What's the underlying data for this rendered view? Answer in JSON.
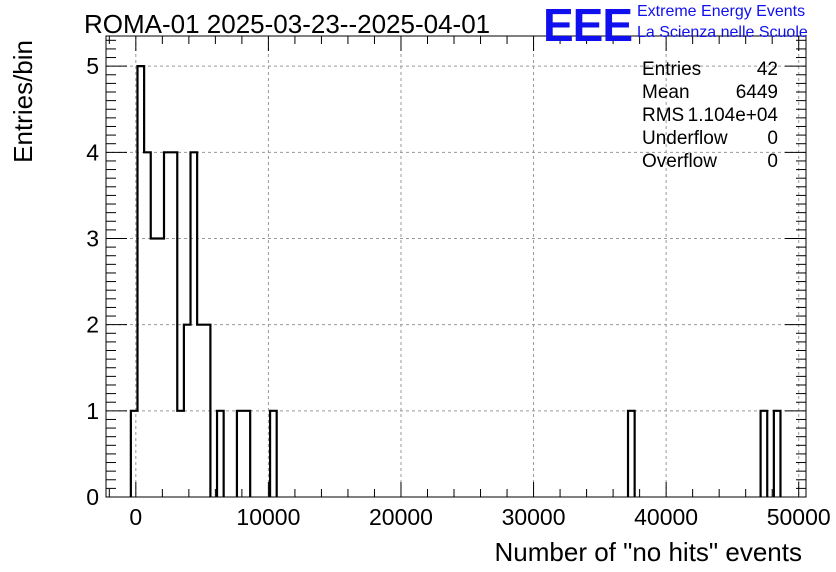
{
  "title": "ROMA-01 2025-03-23--2025-04-01",
  "logo": {
    "mark": "EEE",
    "line1": "Extreme Energy Events",
    "line2": "La Scienza nelle Scuole",
    "color": "#1010ee"
  },
  "stats": [
    {
      "label": "Entries",
      "value": "42"
    },
    {
      "label": "Mean",
      "value": "6449"
    },
    {
      "label": "RMS",
      "value": "1.104e+04"
    },
    {
      "label": "Underflow",
      "value": "0"
    },
    {
      "label": "Overflow",
      "value": "0"
    }
  ],
  "chart_data": {
    "type": "bar",
    "title": "ROMA-01 2025-03-23--2025-04-01",
    "xlabel": "Number of \"no hits\" events",
    "ylabel": "Entries/bin",
    "xlim": [
      -2250,
      50550
    ],
    "ylim": [
      0,
      5.35
    ],
    "x_ticks": [
      0,
      10000,
      20000,
      30000,
      40000,
      50000
    ],
    "y_ticks": [
      0,
      1,
      2,
      3,
      4,
      5
    ],
    "grid": true,
    "bin_width": 500,
    "bins": [
      {
        "x": -125,
        "y": 1
      },
      {
        "x": 375,
        "y": 5
      },
      {
        "x": 875,
        "y": 4
      },
      {
        "x": 1375,
        "y": 3
      },
      {
        "x": 1875,
        "y": 3
      },
      {
        "x": 2375,
        "y": 4
      },
      {
        "x": 2875,
        "y": 4
      },
      {
        "x": 3375,
        "y": 1
      },
      {
        "x": 3875,
        "y": 2
      },
      {
        "x": 4375,
        "y": 4
      },
      {
        "x": 4875,
        "y": 2
      },
      {
        "x": 5375,
        "y": 2
      },
      {
        "x": 6375,
        "y": 1
      },
      {
        "x": 7875,
        "y": 1
      },
      {
        "x": 8375,
        "y": 1
      },
      {
        "x": 10375,
        "y": 1
      },
      {
        "x": 37375,
        "y": 1
      },
      {
        "x": 47375,
        "y": 1
      },
      {
        "x": 48375,
        "y": 1
      }
    ]
  }
}
